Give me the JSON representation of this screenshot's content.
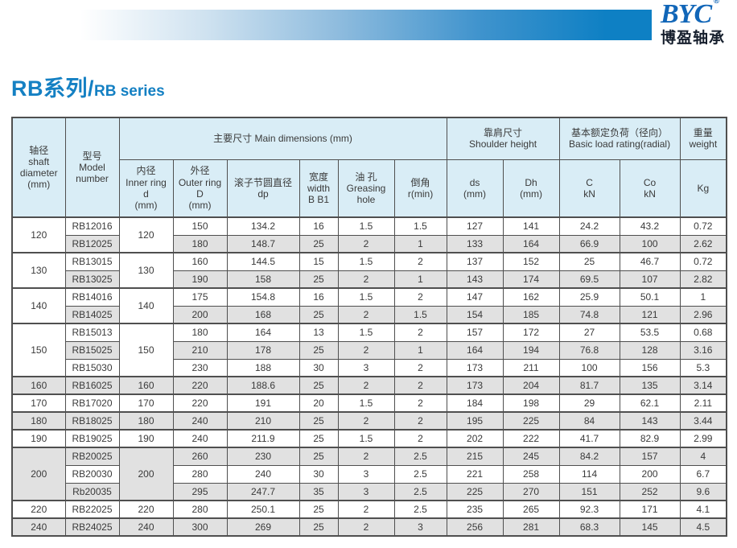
{
  "brand": {
    "name": "BYC",
    "registered": "®",
    "chinese": "博盈轴承"
  },
  "page_title": {
    "zh": "RB系列/",
    "en": "RB series"
  },
  "colors": {
    "accent_blue": "#0e80c4",
    "logo_blue": "#1166b8",
    "title_blue": "#1480c3",
    "table_header_bg": "#d9edf6",
    "row_stripe_gray": "#e1e1e1"
  },
  "table": {
    "group_headers": {
      "shaft": "轴径\nshaft\ndiameter\n(mm)",
      "model": "型号\nModel\nnumber",
      "main_dims": "主要尺寸 Main dimensions (mm)",
      "shoulder": "靠肩尺寸\nShoulder height",
      "load_rating": "基本额定负荷（径向）\nBasic load rating(radial)",
      "weight": "重量\nweight"
    },
    "sub_headers": [
      "内径\nInner ring\nd\n(mm)",
      "外径\nOuter ring\nD\n(mm)",
      "滚子节圆直径\ndp",
      "宽度\nwidth\nB B1",
      "油 孔\nGreasing\nhole",
      "倒角\nr(min)",
      "ds\n(mm)",
      "Dh\n(mm)",
      "C\nkN",
      "Co\nkN",
      "Kg"
    ],
    "groups": [
      {
        "shaft": "120",
        "inner": "120",
        "rows": [
          {
            "model": "RB12016",
            "values": [
              "150",
              "134.2",
              "16",
              "1.5",
              "1.5",
              "127",
              "141",
              "24.2",
              "43.2",
              "0.72"
            ]
          },
          {
            "model": "RB12025",
            "values": [
              "180",
              "148.7",
              "25",
              "2",
              "1",
              "133",
              "164",
              "66.9",
              "100",
              "2.62"
            ]
          }
        ]
      },
      {
        "shaft": "130",
        "inner": "130",
        "rows": [
          {
            "model": "RB13015",
            "values": [
              "160",
              "144.5",
              "15",
              "1.5",
              "2",
              "137",
              "152",
              "25",
              "46.7",
              "0.72"
            ]
          },
          {
            "model": "RB13025",
            "values": [
              "190",
              "158",
              "25",
              "2",
              "1",
              "143",
              "174",
              "69.5",
              "107",
              "2.82"
            ]
          }
        ]
      },
      {
        "shaft": "140",
        "inner": "140",
        "rows": [
          {
            "model": "RB14016",
            "values": [
              "175",
              "154.8",
              "16",
              "1.5",
              "2",
              "147",
              "162",
              "25.9",
              "50.1",
              "1"
            ]
          },
          {
            "model": "RB14025",
            "values": [
              "200",
              "168",
              "25",
              "2",
              "1.5",
              "154",
              "185",
              "74.8",
              "121",
              "2.96"
            ]
          }
        ]
      },
      {
        "shaft": "150",
        "inner": "150",
        "rows": [
          {
            "model": "RB15013",
            "values": [
              "180",
              "164",
              "13",
              "1.5",
              "2",
              "157",
              "172",
              "27",
              "53.5",
              "0.68"
            ]
          },
          {
            "model": "RB15025",
            "values": [
              "210",
              "178",
              "25",
              "2",
              "1",
              "164",
              "194",
              "76.8",
              "128",
              "3.16"
            ]
          },
          {
            "model": "RB15030",
            "values": [
              "230",
              "188",
              "30",
              "3",
              "2",
              "173",
              "211",
              "100",
              "156",
              "5.3"
            ]
          }
        ]
      },
      {
        "shaft": "160",
        "inner": "160",
        "rows": [
          {
            "model": "RB16025",
            "values": [
              "220",
              "188.6",
              "25",
              "2",
              "2",
              "173",
              "204",
              "81.7",
              "135",
              "3.14"
            ]
          }
        ]
      },
      {
        "shaft": "170",
        "inner": "170",
        "rows": [
          {
            "model": "RB17020",
            "values": [
              "220",
              "191",
              "20",
              "1.5",
              "2",
              "184",
              "198",
              "29",
              "62.1",
              "2.11"
            ]
          }
        ]
      },
      {
        "shaft": "180",
        "inner": "180",
        "rows": [
          {
            "model": "RB18025",
            "values": [
              "240",
              "210",
              "25",
              "2",
              "2",
              "195",
              "225",
              "84",
              "143",
              "3.44"
            ]
          }
        ]
      },
      {
        "shaft": "190",
        "inner": "190",
        "rows": [
          {
            "model": "RB19025",
            "values": [
              "240",
              "211.9",
              "25",
              "1.5",
              "2",
              "202",
              "222",
              "41.7",
              "82.9",
              "2.99"
            ]
          }
        ]
      },
      {
        "shaft": "200",
        "inner": "200",
        "rows": [
          {
            "model": "RB20025",
            "values": [
              "260",
              "230",
              "25",
              "2",
              "2.5",
              "215",
              "245",
              "84.2",
              "157",
              "4"
            ]
          },
          {
            "model": "RB20030",
            "values": [
              "280",
              "240",
              "30",
              "3",
              "2.5",
              "221",
              "258",
              "114",
              "200",
              "6.7"
            ]
          },
          {
            "model": "Rb20035",
            "values": [
              "295",
              "247.7",
              "35",
              "3",
              "2.5",
              "225",
              "270",
              "151",
              "252",
              "9.6"
            ]
          }
        ]
      },
      {
        "shaft": "220",
        "inner": "220",
        "rows": [
          {
            "model": "RB22025",
            "values": [
              "280",
              "250.1",
              "25",
              "2",
              "2.5",
              "235",
              "265",
              "92.3",
              "171",
              "4.1"
            ]
          }
        ]
      },
      {
        "shaft": "240",
        "inner": "240",
        "rows": [
          {
            "model": "RB24025",
            "values": [
              "300",
              "269",
              "25",
              "2",
              "3",
              "256",
              "281",
              "68.3",
              "145",
              "4.5"
            ]
          }
        ]
      }
    ]
  }
}
